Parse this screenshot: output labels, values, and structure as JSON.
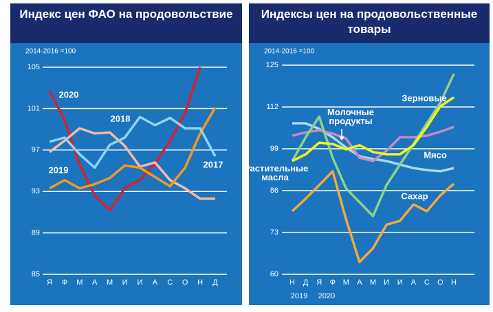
{
  "chart_data": [
    {
      "type": "line",
      "title": "Индекс цен ФАО на продовольствие",
      "subtitle": "2014-2016 =100",
      "categories": [
        "Я",
        "Ф",
        "М",
        "А",
        "М",
        "И",
        "И",
        "А",
        "С",
        "О",
        "Н",
        "Д"
      ],
      "ylim": [
        85,
        105
      ],
      "yticks": [
        85,
        89,
        93,
        97,
        101,
        105
      ],
      "grid": true,
      "series": [
        {
          "name": "2020",
          "color": "#d9202c",
          "values": [
            102.7,
            99.9,
            95.6,
            92.6,
            91.2,
            93.3,
            94.1,
            95.7,
            97.9,
            100.6,
            105.0,
            null
          ]
        },
        {
          "name": "2018",
          "color": "#f5b9a6",
          "values": [
            96.8,
            97.9,
            99.1,
            98.6,
            98.7,
            97.4,
            95.4,
            95.8,
            94.1,
            93.3,
            92.3,
            92.3
          ]
        },
        {
          "name": "2019",
          "color": "#f39a1e",
          "values": [
            93.3,
            94.1,
            93.3,
            93.7,
            94.3,
            95.5,
            95.3,
            94.4,
            93.5,
            95.3,
            98.6,
            101.1
          ]
        },
        {
          "name": "2017",
          "color": "#8fd3f0",
          "values": [
            97.8,
            98.2,
            96.6,
            95.3,
            97.5,
            98.2,
            100.2,
            99.4,
            100.1,
            99.1,
            99.1,
            96.4
          ]
        }
      ]
    },
    {
      "type": "line",
      "title": "Индексы цен на продовольственные товары",
      "subtitle": "2014-2016 =100",
      "categories": [
        "Н",
        "Д",
        "Я",
        "Ф",
        "М",
        "А",
        "М",
        "И",
        "И",
        "А",
        "С",
        "О",
        "Н"
      ],
      "annotations": [
        "2019",
        "2020"
      ],
      "ylim": [
        60,
        125
      ],
      "yticks": [
        60,
        73,
        86,
        99,
        112,
        125
      ],
      "grid": true,
      "series": [
        {
          "name": "Мясо",
          "color": "#a8d8f2",
          "values": [
            106.9,
            106.9,
            105.2,
            102.6,
            99.4,
            96.7,
            95.8,
            95.2,
            94.1,
            93.0,
            92.4,
            92.0,
            93.0
          ]
        },
        {
          "name": "Молочные продукты",
          "color": "#c98ac0",
          "values": [
            103.1,
            104.1,
            104.8,
            103.7,
            102.2,
            96.2,
            95.2,
            98.4,
            102.6,
            102.6,
            103.1,
            104.3,
            105.8
          ]
        },
        {
          "name": "Растительные масла",
          "color": "#8fd18a",
          "values": [
            95.2,
            102.6,
            109.0,
            96.2,
            86.7,
            82.4,
            78.1,
            87.7,
            94.1,
            100.5,
            106.9,
            113.3,
            122.3
          ]
        },
        {
          "name": "Сахар",
          "color": "#f7a83a",
          "values": [
            79.6,
            83.5,
            87.7,
            92.0,
            77.1,
            63.8,
            68.1,
            75.4,
            76.6,
            81.7,
            79.6,
            84.5,
            88.1
          ]
        },
        {
          "name": "Зерновые",
          "color": "#f7f21a",
          "values": [
            95.2,
            97.3,
            100.9,
            100.5,
            98.8,
            100.1,
            98.0,
            97.3,
            97.3,
            100.1,
            105.8,
            112.2,
            115.0
          ]
        }
      ]
    }
  ]
}
